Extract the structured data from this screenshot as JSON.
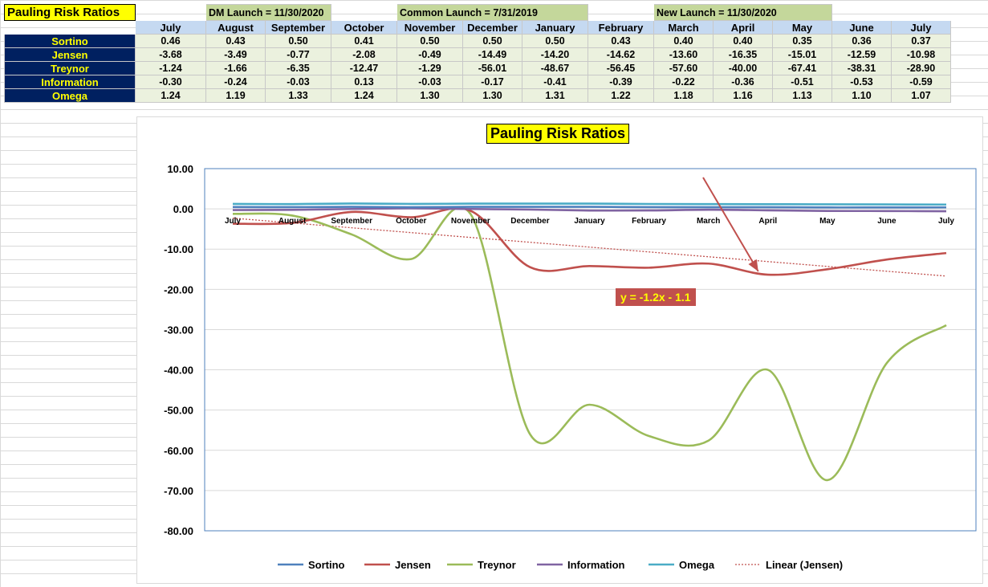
{
  "sheet": {
    "title": "Pauling Risk Ratios",
    "launches": [
      "DM Launch = 11/30/2020",
      "Common Launch = 7/31/2019",
      "New Launch = 11/30/2020"
    ],
    "months": [
      "July",
      "August",
      "September",
      "October",
      "November",
      "December",
      "January",
      "February",
      "March",
      "April",
      "May",
      "June",
      "July"
    ],
    "rows": [
      {
        "label": "Sortino",
        "values": [
          "0.46",
          "0.43",
          "0.50",
          "0.41",
          "0.50",
          "0.50",
          "0.50",
          "0.43",
          "0.40",
          "0.40",
          "0.35",
          "0.36",
          "0.37"
        ]
      },
      {
        "label": "Jensen",
        "values": [
          "-3.68",
          "-3.49",
          "-0.77",
          "-2.08",
          "-0.49",
          "-14.49",
          "-14.20",
          "-14.62",
          "-13.60",
          "-16.35",
          "-15.01",
          "-12.59",
          "-10.98"
        ]
      },
      {
        "label": "Treynor",
        "values": [
          "-1.24",
          "-1.66",
          "-6.35",
          "-12.47",
          "-1.29",
          "-56.01",
          "-48.67",
          "-56.45",
          "-57.60",
          "-40.00",
          "-67.41",
          "-38.31",
          "-28.90"
        ]
      },
      {
        "label": "Information",
        "values": [
          "-0.30",
          "-0.24",
          "-0.03",
          "0.13",
          "-0.03",
          "-0.17",
          "-0.41",
          "-0.39",
          "-0.22",
          "-0.36",
          "-0.51",
          "-0.53",
          "-0.59"
        ]
      },
      {
        "label": "Omega",
        "values": [
          "1.24",
          "1.19",
          "1.33",
          "1.24",
          "1.30",
          "1.30",
          "1.31",
          "1.22",
          "1.18",
          "1.16",
          "1.13",
          "1.10",
          "1.07"
        ]
      }
    ]
  },
  "chart_data": {
    "type": "line",
    "title": "Pauling Risk Ratios",
    "x": [
      "July",
      "August",
      "September",
      "October",
      "November",
      "December",
      "January",
      "February",
      "March",
      "April",
      "May",
      "June",
      "July"
    ],
    "ylim": [
      -80,
      10
    ],
    "yticks": [
      "10.00",
      "0.00",
      "-10.00",
      "-20.00",
      "-30.00",
      "-40.00",
      "-50.00",
      "-60.00",
      "-70.00",
      "-80.00"
    ],
    "grid": true,
    "legend": "bottom",
    "series": [
      {
        "name": "Sortino",
        "color": "#4f81bd",
        "values": [
          0.46,
          0.43,
          0.5,
          0.41,
          0.5,
          0.5,
          0.5,
          0.43,
          0.4,
          0.4,
          0.35,
          0.36,
          0.37
        ]
      },
      {
        "name": "Jensen",
        "color": "#c0504d",
        "values": [
          -3.68,
          -3.49,
          -0.77,
          -2.08,
          -0.49,
          -14.49,
          -14.2,
          -14.62,
          -13.6,
          -16.35,
          -15.01,
          -12.59,
          -10.98
        ]
      },
      {
        "name": "Treynor",
        "color": "#9bbb59",
        "values": [
          -1.24,
          -1.66,
          -6.35,
          -12.47,
          -1.29,
          -56.01,
          -48.67,
          -56.45,
          -57.6,
          -40.0,
          -67.41,
          -38.31,
          -28.9
        ]
      },
      {
        "name": "Information",
        "color": "#8064a2",
        "values": [
          -0.3,
          -0.24,
          -0.03,
          0.13,
          -0.03,
          -0.17,
          -0.41,
          -0.39,
          -0.22,
          -0.36,
          -0.51,
          -0.53,
          -0.59
        ]
      },
      {
        "name": "Omega",
        "color": "#4bacc6",
        "values": [
          1.24,
          1.19,
          1.33,
          1.24,
          1.3,
          1.3,
          1.31,
          1.22,
          1.18,
          1.16,
          1.13,
          1.1,
          1.07
        ]
      }
    ],
    "trendline": {
      "name": "Linear (Jensen)",
      "color": "#c0504d",
      "equation": "y = -1.2x - 1.1",
      "slope": -1.2,
      "intercept": -1.1
    },
    "annotation_arrow": {
      "color": "#c0504d",
      "points_to": "April"
    }
  }
}
